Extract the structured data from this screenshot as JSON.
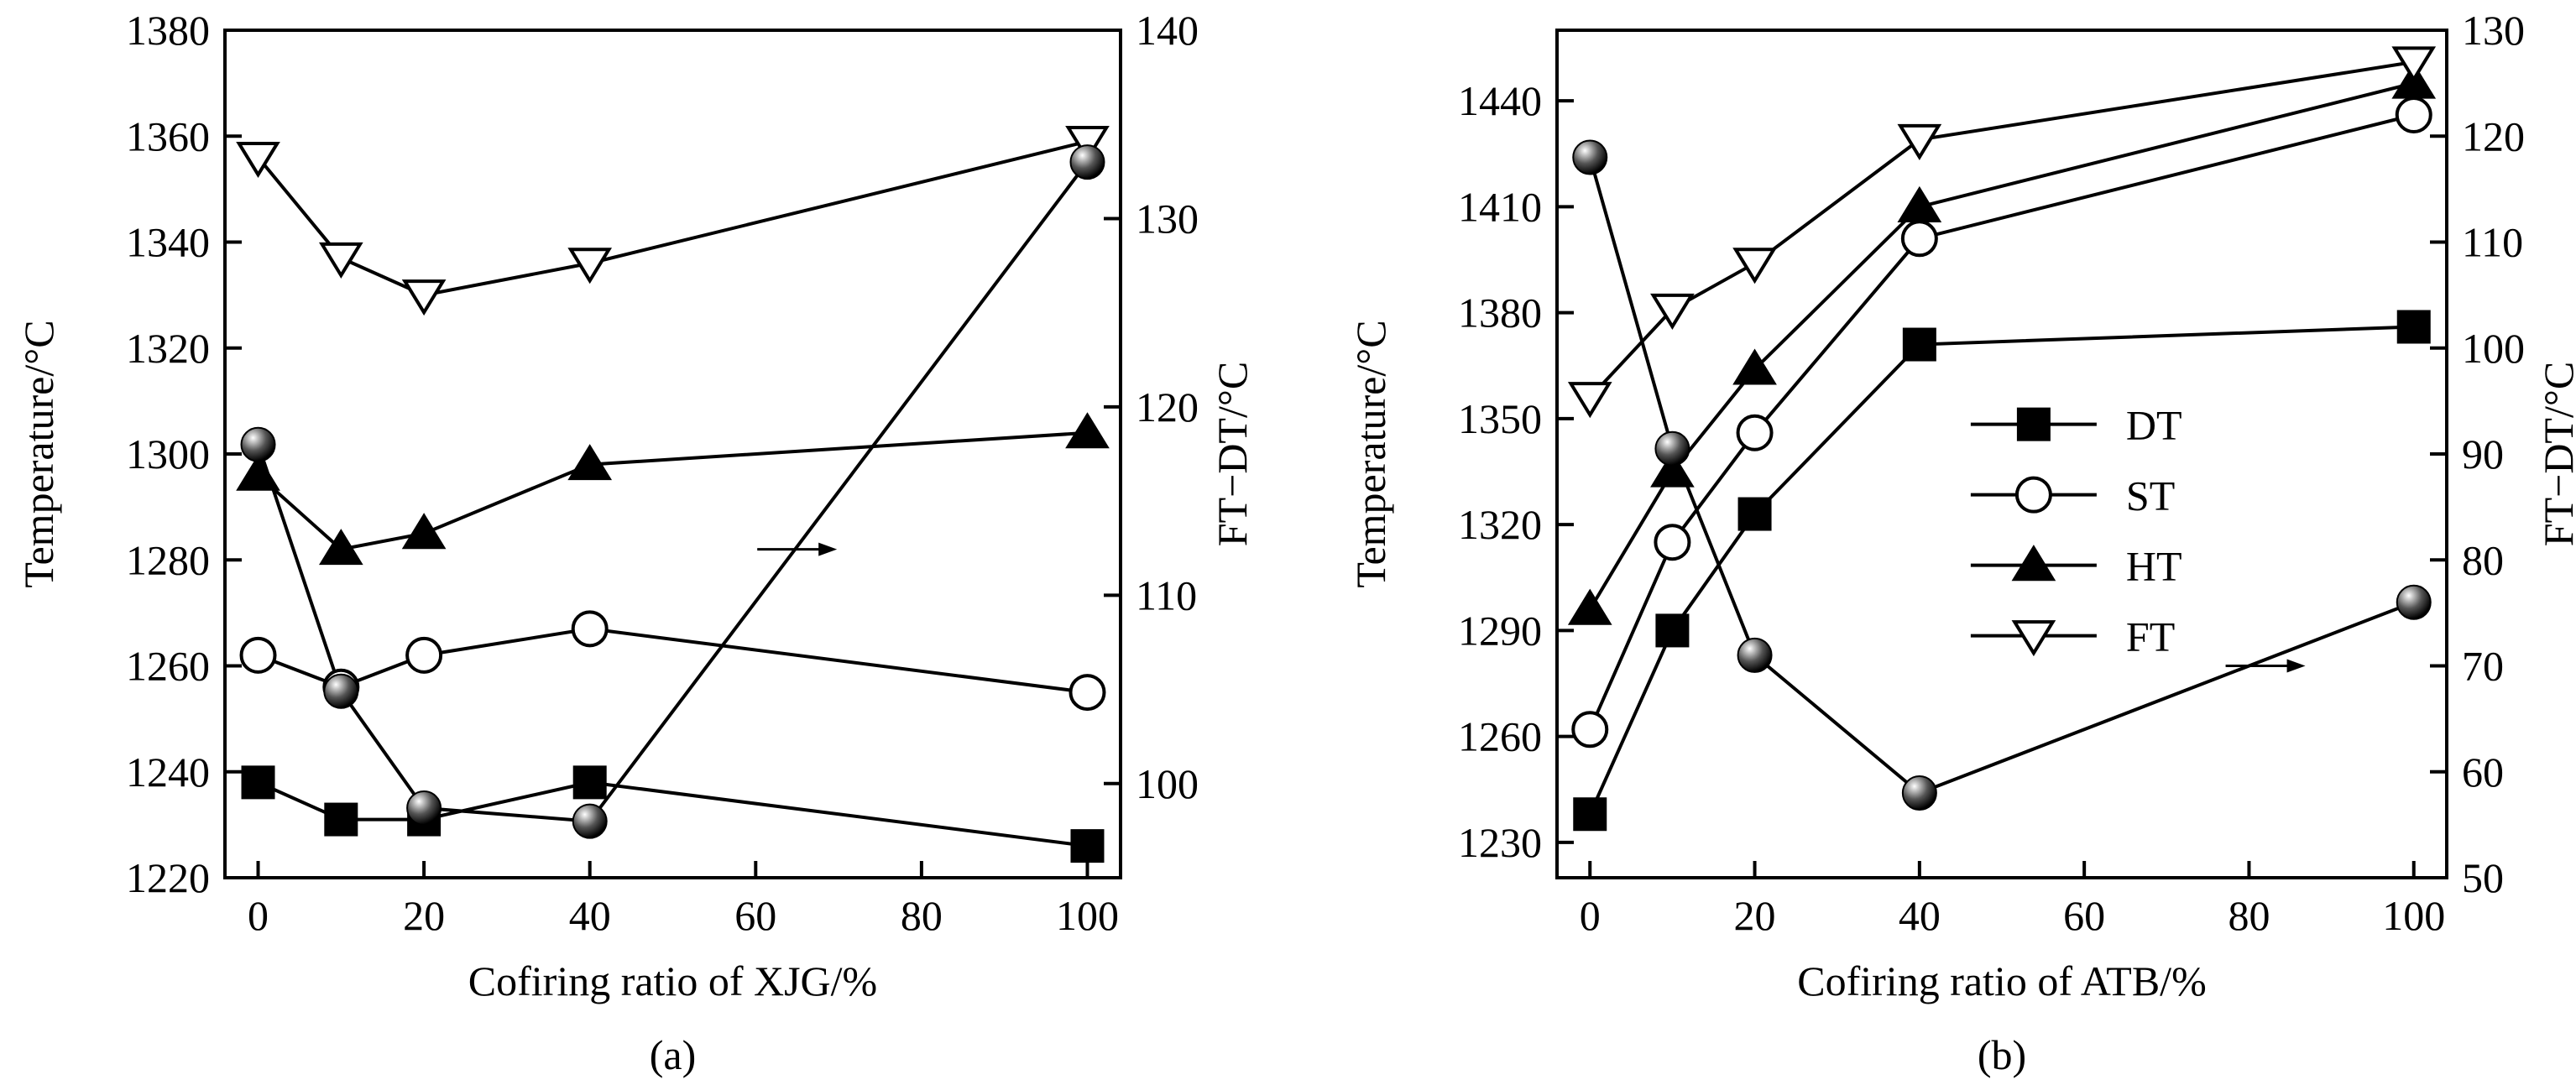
{
  "figure": {
    "colors": {
      "ink": "#000000",
      "background": "#ffffff",
      "marker_fill_empty": "#ffffff",
      "sphere_light": "#d9d9d9",
      "sphere_dark": "#000000"
    }
  },
  "chart_data": [
    {
      "id": "a",
      "type": "line",
      "panel_label": "(a)",
      "xlabel": "Cofiring ratio of XJG/%",
      "ylabel_left": "Temperature/°C",
      "ylabel_right": "FT−DT/°C",
      "xlim": [
        -4,
        104
      ],
      "xticks": [
        0,
        20,
        40,
        60,
        80,
        100
      ],
      "ylim_left": [
        1220,
        1380
      ],
      "yticks_left": [
        1220,
        1240,
        1260,
        1280,
        1300,
        1320,
        1340,
        1360,
        1380
      ],
      "ylim_right": [
        95,
        140
      ],
      "yticks_right": [
        100,
        110,
        120,
        130,
        140
      ],
      "x": [
        0,
        10,
        20,
        40,
        100
      ],
      "series": [
        {
          "name": "DT",
          "axis": "left",
          "marker": "square-filled",
          "values": [
            1238,
            1231,
            1231,
            1238,
            1226
          ]
        },
        {
          "name": "ST",
          "axis": "left",
          "marker": "circle-open",
          "values": [
            1262,
            1256,
            1262,
            1267,
            1255
          ]
        },
        {
          "name": "HT",
          "axis": "left",
          "marker": "triangle-up-filled",
          "values": [
            1296,
            1282,
            1285,
            1298,
            1304
          ]
        },
        {
          "name": "FT",
          "axis": "left",
          "marker": "triangle-down-open",
          "values": [
            1356,
            1337,
            1330,
            1336,
            1359
          ]
        },
        {
          "name": "FT−DT",
          "axis": "right",
          "marker": "sphere",
          "values": [
            118,
            104.9,
            98.7,
            98,
            133
          ]
        }
      ],
      "annotation": {
        "type": "arrow",
        "direction": "right",
        "points_to": "right axis",
        "at": {
          "x": 65,
          "y_left": 1282
        }
      }
    },
    {
      "id": "b",
      "type": "line",
      "panel_label": "(b)",
      "xlabel": "Cofiring ratio of ATB/%",
      "ylabel_left": "Temperature/°C",
      "ylabel_right": "FT−DT/°C",
      "xlim": [
        -4,
        104
      ],
      "xticks": [
        0,
        20,
        40,
        60,
        80,
        100
      ],
      "ylim_left": [
        1220,
        1460
      ],
      "yticks_left": [
        1230,
        1260,
        1290,
        1320,
        1350,
        1380,
        1410,
        1440
      ],
      "ylim_right": [
        50,
        130
      ],
      "yticks_right": [
        50,
        60,
        70,
        80,
        90,
        100,
        110,
        120,
        130
      ],
      "x": [
        0,
        10,
        20,
        40,
        100
      ],
      "series": [
        {
          "name": "DT",
          "axis": "left",
          "marker": "square-filled",
          "values": [
            1238,
            1290,
            1323,
            1371,
            1376
          ]
        },
        {
          "name": "ST",
          "axis": "left",
          "marker": "circle-open",
          "values": [
            1262,
            1315,
            1346,
            1401,
            1436
          ]
        },
        {
          "name": "HT",
          "axis": "left",
          "marker": "triangle-up-filled",
          "values": [
            1296,
            1335,
            1364,
            1410,
            1445
          ]
        },
        {
          "name": "FT",
          "axis": "left",
          "marker": "triangle-down-open",
          "values": [
            1356,
            1381,
            1394,
            1429,
            1451
          ]
        },
        {
          "name": "FT−DT",
          "axis": "right",
          "marker": "sphere",
          "values": [
            118,
            90.5,
            71,
            58,
            76
          ]
        }
      ],
      "legend": {
        "placement": "center-right",
        "entries": [
          "DT",
          "ST",
          "HT",
          "FT"
        ]
      },
      "annotation": {
        "type": "arrow",
        "direction": "right",
        "points_to": "right axis",
        "at": {
          "x": 82,
          "y_left": 1280
        }
      }
    }
  ]
}
